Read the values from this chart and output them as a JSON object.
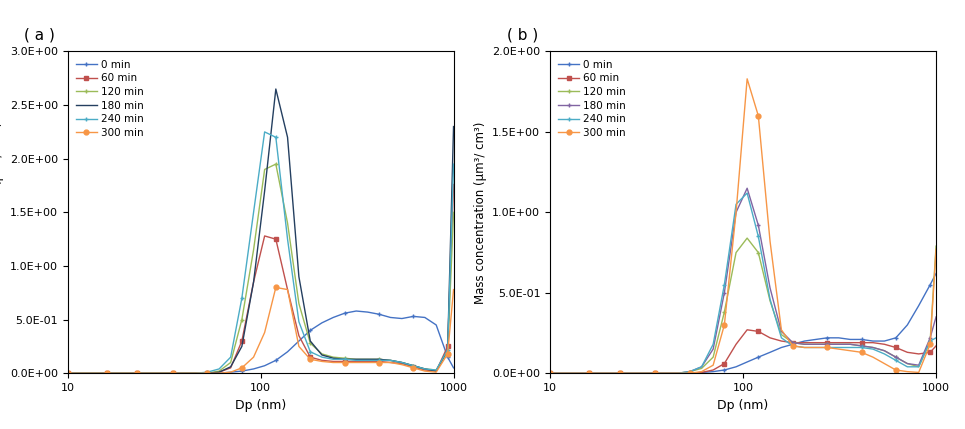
{
  "panel_a": {
    "title": "( a )",
    "ylim": [
      0.0,
      3.0
    ],
    "yticks": [
      0.0,
      0.5,
      1.0,
      1.5,
      2.0,
      2.5,
      3.0
    ],
    "series": {
      "0 min": {
        "color": "#4472C4",
        "marker": "+",
        "x": [
          10,
          12,
          14,
          16,
          18,
          20,
          23,
          26,
          30,
          35,
          40,
          46,
          53,
          61,
          70,
          80,
          92,
          105,
          120,
          138,
          158,
          181,
          208,
          238,
          273,
          313,
          359,
          411,
          471,
          540,
          619,
          710,
          813,
          932,
          1000
        ],
        "y": [
          0,
          0,
          0,
          0,
          0,
          0,
          0,
          0,
          0,
          0,
          0,
          0,
          0,
          0,
          0.01,
          0.02,
          0.04,
          0.07,
          0.12,
          0.2,
          0.3,
          0.4,
          0.47,
          0.52,
          0.56,
          0.58,
          0.57,
          0.55,
          0.52,
          0.51,
          0.53,
          0.52,
          0.45,
          0.15,
          0.05
        ]
      },
      "60 min": {
        "color": "#C0504D",
        "marker": "s",
        "x": [
          10,
          12,
          14,
          16,
          18,
          20,
          23,
          26,
          30,
          35,
          40,
          46,
          53,
          61,
          70,
          80,
          92,
          105,
          120,
          138,
          158,
          181,
          208,
          238,
          273,
          313,
          359,
          411,
          471,
          540,
          619,
          710,
          813,
          932,
          1000
        ],
        "y": [
          0,
          0,
          0,
          0,
          0,
          0,
          0,
          0,
          0,
          0,
          0,
          0,
          0,
          0.01,
          0.05,
          0.3,
          0.85,
          1.28,
          1.25,
          0.78,
          0.35,
          0.15,
          0.12,
          0.11,
          0.11,
          0.11,
          0.11,
          0.11,
          0.1,
          0.09,
          0.06,
          0.03,
          0.02,
          0.25,
          1.76
        ]
      },
      "120 min": {
        "color": "#9BBB59",
        "marker": "+",
        "x": [
          10,
          12,
          14,
          16,
          18,
          20,
          23,
          26,
          30,
          35,
          40,
          46,
          53,
          61,
          70,
          80,
          92,
          105,
          120,
          138,
          158,
          181,
          208,
          238,
          273,
          313,
          359,
          411,
          471,
          540,
          619,
          710,
          813,
          932,
          1000
        ],
        "y": [
          0,
          0,
          0,
          0,
          0,
          0,
          0,
          0,
          0,
          0,
          0,
          0,
          0,
          0.02,
          0.1,
          0.5,
          1.15,
          1.9,
          1.95,
          1.4,
          0.65,
          0.28,
          0.18,
          0.15,
          0.14,
          0.13,
          0.13,
          0.13,
          0.12,
          0.1,
          0.07,
          0.04,
          0.03,
          0.2,
          1.5
        ]
      },
      "180 min": {
        "color": "#243F60",
        "marker": null,
        "x": [
          10,
          12,
          14,
          16,
          18,
          20,
          23,
          26,
          30,
          35,
          40,
          46,
          53,
          61,
          70,
          80,
          92,
          105,
          120,
          138,
          158,
          181,
          208,
          238,
          273,
          313,
          359,
          411,
          471,
          540,
          619,
          710,
          813,
          932,
          1000
        ],
        "y": [
          0,
          0,
          0,
          0,
          0,
          0,
          0,
          0,
          0,
          0,
          0,
          0,
          0,
          0.01,
          0.06,
          0.25,
          0.85,
          1.7,
          2.65,
          2.2,
          0.9,
          0.3,
          0.17,
          0.14,
          0.13,
          0.13,
          0.13,
          0.13,
          0.12,
          0.1,
          0.07,
          0.04,
          0.02,
          0.22,
          2.3
        ]
      },
      "240 min": {
        "color": "#4BACC6",
        "marker": "+",
        "x": [
          10,
          12,
          14,
          16,
          18,
          20,
          23,
          26,
          30,
          35,
          40,
          46,
          53,
          61,
          70,
          80,
          92,
          105,
          120,
          138,
          158,
          181,
          208,
          238,
          273,
          313,
          359,
          411,
          471,
          540,
          619,
          710,
          813,
          932,
          1000
        ],
        "y": [
          0,
          0,
          0,
          0,
          0,
          0,
          0,
          0,
          0,
          0,
          0,
          0,
          0.01,
          0.04,
          0.15,
          0.7,
          1.5,
          2.25,
          2.2,
          1.25,
          0.48,
          0.2,
          0.15,
          0.13,
          0.13,
          0.12,
          0.12,
          0.12,
          0.12,
          0.1,
          0.07,
          0.04,
          0.03,
          0.22,
          1.95
        ]
      },
      "300 min": {
        "color": "#F79646",
        "marker": "o",
        "x": [
          10,
          12,
          14,
          16,
          18,
          20,
          23,
          26,
          30,
          35,
          40,
          46,
          53,
          61,
          70,
          80,
          92,
          105,
          120,
          138,
          158,
          181,
          208,
          238,
          273,
          313,
          359,
          411,
          471,
          540,
          619,
          710,
          813,
          932,
          1000
        ],
        "y": [
          0,
          0,
          0,
          0,
          0,
          0,
          0,
          0,
          0,
          0,
          0,
          0,
          0,
          0,
          0.01,
          0.05,
          0.15,
          0.38,
          0.8,
          0.78,
          0.25,
          0.13,
          0.11,
          0.1,
          0.1,
          0.1,
          0.1,
          0.1,
          0.1,
          0.08,
          0.05,
          0.02,
          0.01,
          0.18,
          0.78
        ]
      }
    }
  },
  "panel_b": {
    "title": "( b )",
    "ylim": [
      0.0,
      2.0
    ],
    "yticks": [
      0.0,
      0.5,
      1.0,
      1.5,
      2.0
    ],
    "series": {
      "0 min": {
        "color": "#4472C4",
        "marker": "+",
        "x": [
          10,
          12,
          14,
          16,
          18,
          20,
          23,
          26,
          30,
          35,
          40,
          46,
          53,
          61,
          70,
          80,
          92,
          105,
          120,
          138,
          158,
          181,
          208,
          238,
          273,
          313,
          359,
          411,
          471,
          540,
          619,
          710,
          813,
          932,
          1000
        ],
        "y": [
          0,
          0,
          0,
          0,
          0,
          0,
          0,
          0,
          0,
          0,
          0,
          0,
          0,
          0.005,
          0.01,
          0.02,
          0.04,
          0.07,
          0.1,
          0.13,
          0.16,
          0.18,
          0.2,
          0.21,
          0.22,
          0.22,
          0.21,
          0.21,
          0.2,
          0.2,
          0.22,
          0.3,
          0.42,
          0.55,
          0.62
        ]
      },
      "60 min": {
        "color": "#C0504D",
        "marker": "s",
        "x": [
          10,
          12,
          14,
          16,
          18,
          20,
          23,
          26,
          30,
          35,
          40,
          46,
          53,
          61,
          70,
          80,
          92,
          105,
          120,
          138,
          158,
          181,
          208,
          238,
          273,
          313,
          359,
          411,
          471,
          540,
          619,
          710,
          813,
          932,
          1000
        ],
        "y": [
          0,
          0,
          0,
          0,
          0,
          0,
          0,
          0,
          0,
          0,
          0,
          0,
          0,
          0.005,
          0.02,
          0.06,
          0.18,
          0.27,
          0.26,
          0.22,
          0.2,
          0.19,
          0.19,
          0.19,
          0.19,
          0.19,
          0.19,
          0.19,
          0.19,
          0.18,
          0.16,
          0.13,
          0.12,
          0.13,
          0.17
        ]
      },
      "120 min": {
        "color": "#9BBB59",
        "marker": "+",
        "x": [
          10,
          12,
          14,
          16,
          18,
          20,
          23,
          26,
          30,
          35,
          40,
          46,
          53,
          61,
          70,
          80,
          92,
          105,
          120,
          138,
          158,
          181,
          208,
          238,
          273,
          313,
          359,
          411,
          471,
          540,
          619,
          710,
          813,
          932,
          1000
        ],
        "y": [
          0,
          0,
          0,
          0,
          0,
          0,
          0,
          0,
          0,
          0,
          0,
          0,
          0.01,
          0.03,
          0.1,
          0.38,
          0.75,
          0.84,
          0.75,
          0.45,
          0.24,
          0.19,
          0.18,
          0.18,
          0.18,
          0.18,
          0.18,
          0.17,
          0.16,
          0.14,
          0.1,
          0.06,
          0.04,
          0.2,
          0.79
        ]
      },
      "180 min": {
        "color": "#8064A2",
        "marker": "+",
        "x": [
          10,
          12,
          14,
          16,
          18,
          20,
          23,
          26,
          30,
          35,
          40,
          46,
          53,
          61,
          70,
          80,
          92,
          105,
          120,
          138,
          158,
          181,
          208,
          238,
          273,
          313,
          359,
          411,
          471,
          540,
          619,
          710,
          813,
          932,
          1000
        ],
        "y": [
          0,
          0,
          0,
          0,
          0,
          0,
          0,
          0,
          0,
          0,
          0,
          0,
          0.01,
          0.04,
          0.15,
          0.5,
          1.0,
          1.15,
          0.92,
          0.53,
          0.26,
          0.19,
          0.18,
          0.18,
          0.18,
          0.18,
          0.18,
          0.17,
          0.16,
          0.14,
          0.1,
          0.06,
          0.05,
          0.22,
          0.35
        ]
      },
      "240 min": {
        "color": "#4BACC6",
        "marker": "+",
        "x": [
          10,
          12,
          14,
          16,
          18,
          20,
          23,
          26,
          30,
          35,
          40,
          46,
          53,
          61,
          70,
          80,
          92,
          105,
          120,
          138,
          158,
          181,
          208,
          238,
          273,
          313,
          359,
          411,
          471,
          540,
          619,
          710,
          813,
          932,
          1000
        ],
        "y": [
          0,
          0,
          0,
          0,
          0,
          0,
          0,
          0,
          0,
          0,
          0,
          0,
          0.01,
          0.04,
          0.18,
          0.55,
          1.05,
          1.12,
          0.85,
          0.46,
          0.22,
          0.17,
          0.16,
          0.16,
          0.16,
          0.16,
          0.16,
          0.16,
          0.15,
          0.12,
          0.08,
          0.04,
          0.04,
          0.2,
          0.22
        ]
      },
      "300 min": {
        "color": "#F79646",
        "marker": "o",
        "x": [
          10,
          12,
          14,
          16,
          18,
          20,
          23,
          26,
          30,
          35,
          40,
          46,
          53,
          61,
          70,
          80,
          92,
          105,
          120,
          138,
          158,
          181,
          208,
          238,
          273,
          313,
          359,
          411,
          471,
          540,
          619,
          710,
          813,
          932,
          1000
        ],
        "y": [
          0,
          0,
          0,
          0,
          0,
          0,
          0,
          0,
          0,
          0,
          0,
          0,
          0,
          0.01,
          0.05,
          0.3,
          1.0,
          1.83,
          1.6,
          0.82,
          0.27,
          0.17,
          0.16,
          0.16,
          0.16,
          0.15,
          0.14,
          0.13,
          0.1,
          0.06,
          0.02,
          0.01,
          0.005,
          0.18,
          0.77
        ]
      }
    }
  },
  "xlabel": "Dp (nm)",
  "ylabel": "Mass concentration (μm³/ cm³)",
  "xlim": [
    10,
    1000
  ],
  "legend_order": [
    "0 min",
    "60 min",
    "120 min",
    "180 min",
    "240 min",
    "300 min"
  ],
  "background_color": "#ffffff"
}
